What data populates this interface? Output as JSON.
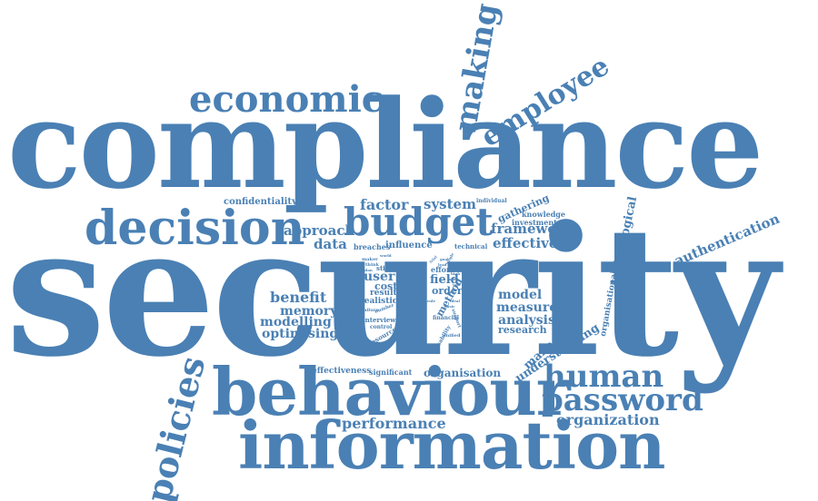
{
  "colors": {
    "word": "#4a80b4",
    "background": "#ffffff"
  },
  "cloud": {
    "security": "security",
    "compliance": "compliance",
    "behaviour": "behaviour",
    "information": "information",
    "decision": "decision",
    "budget": "budget",
    "economic": "economic",
    "making": "making",
    "employee": "employee",
    "human": "human",
    "password": "password",
    "policies": "policies",
    "organization": "organization",
    "performance": "performance",
    "authentication": "authentication",
    "technological": "technological",
    "organisational": "organisational",
    "framework": "framework",
    "effective": "effective",
    "factor": "factor",
    "system": "system",
    "approach": "approach",
    "data": "data",
    "confidentiality": "confidentiality",
    "benefit": "benefit",
    "memory": "memory",
    "modelling": "modelling",
    "optimising": "optimising",
    "model": "model",
    "measure": "measure",
    "analysis": "analysis",
    "research": "research",
    "managing": "managing",
    "understanding": "understanding",
    "effectiveness": "effectiveness",
    "significant": "significant",
    "organisation": "organisation",
    "gathering": "gathering",
    "knowledge": "knowledge",
    "investment": "investment",
    "individual": "individual",
    "breaches": "breaches",
    "influence": "influence",
    "technical": "technical",
    "user": "user",
    "cost": "cost",
    "result": "result",
    "realistic": "realistic",
    "stick": "stick",
    "effort": "effort",
    "field": "field",
    "order": "order",
    "method": "method",
    "interview": "interview",
    "control": "control",
    "resource": "resource",
    "financial": "financial",
    "unified": "unified",
    "usability": "usability",
    "support": "support",
    "number": "number",
    "failure": "failure",
    "maker": "maker",
    "think": "think",
    "plan": "plan",
    "world": "world",
    "trial": "trial",
    "goal": "goal",
    "single": "single",
    "ideal": "ideal",
    "rule": "rule",
    "basic": "basic",
    "lead": "lead",
    "high": "high",
    "set": "set",
    "tool": "tool"
  }
}
